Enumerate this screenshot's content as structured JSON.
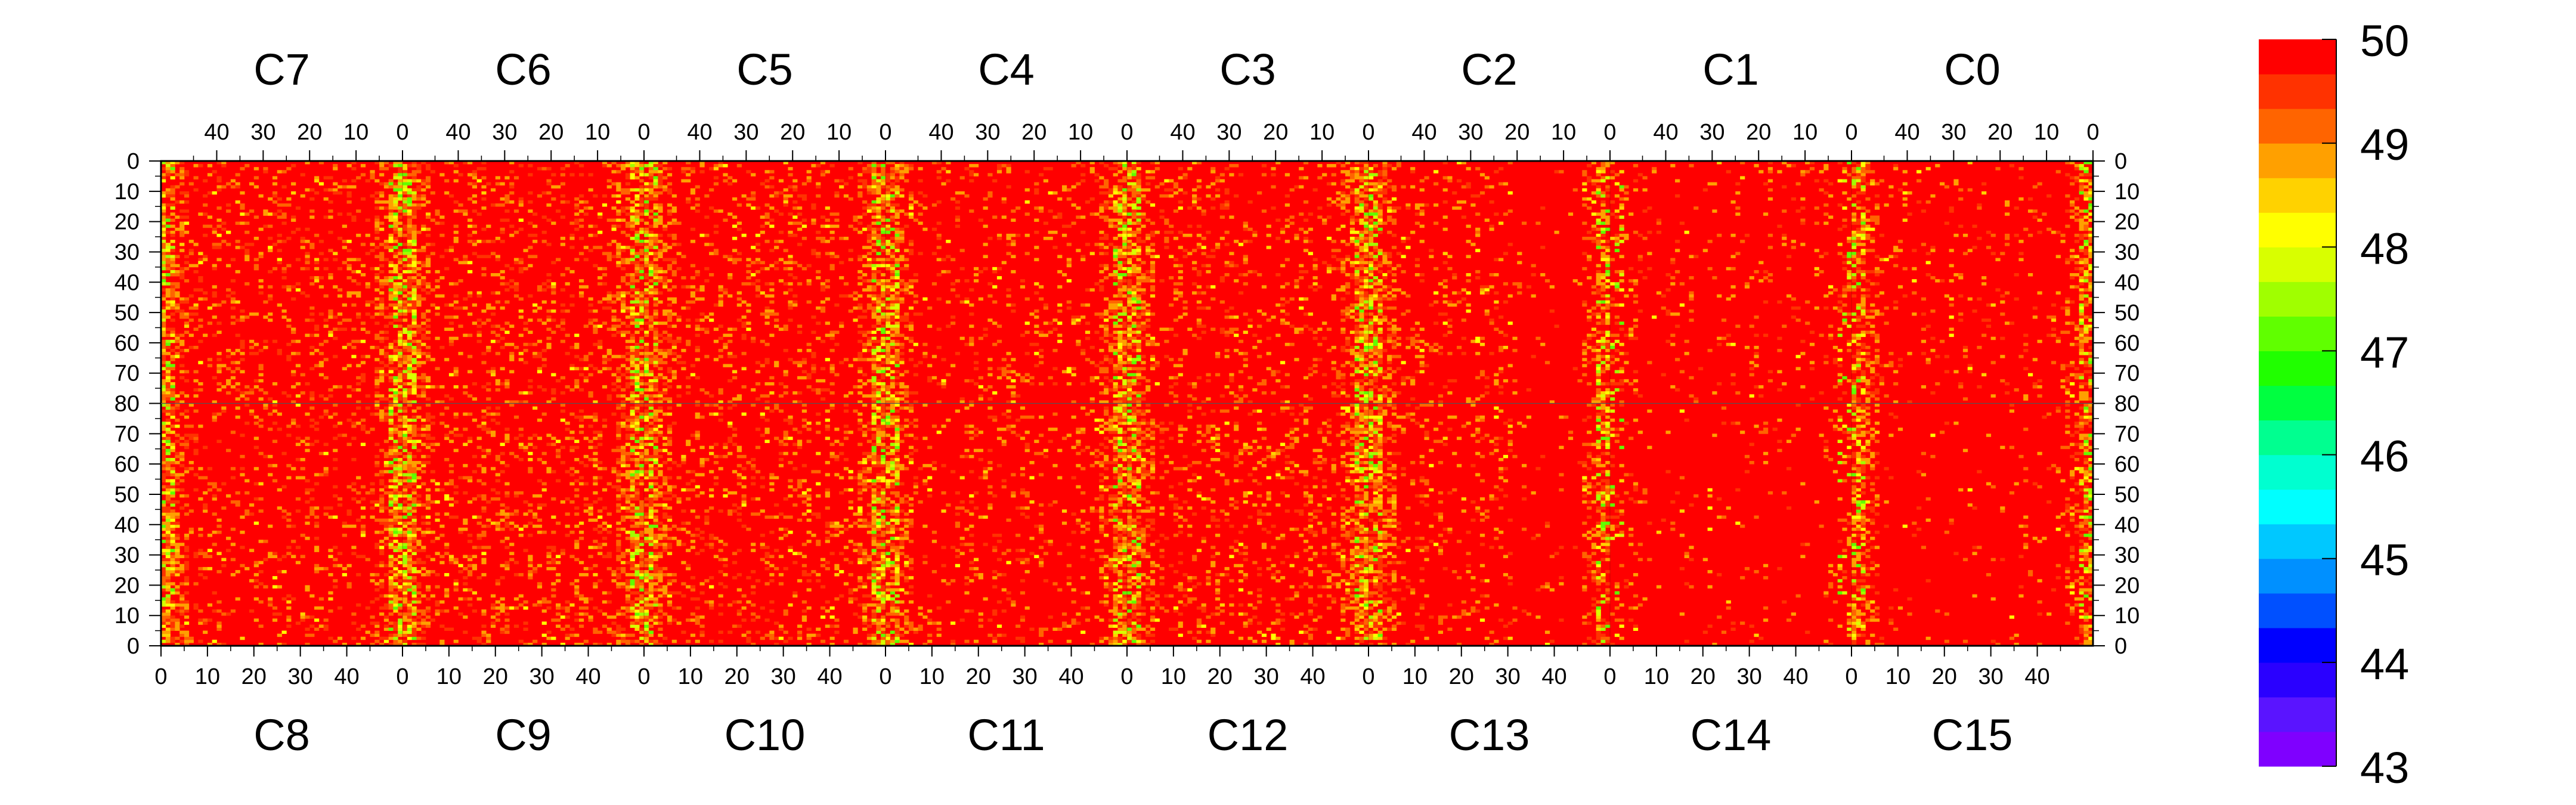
{
  "chart_data": {
    "type": "heatmap",
    "top_chip_labels": [
      "C7",
      "C6",
      "C5",
      "C4",
      "C3",
      "C2",
      "C1",
      "C0"
    ],
    "bottom_chip_labels": [
      "C8",
      "C9",
      "C10",
      "C11",
      "C12",
      "C13",
      "C14",
      "C15"
    ],
    "x_tick_labels_top": [
      "40",
      "30",
      "20",
      "10",
      "0"
    ],
    "x_tick_labels_bottom": [
      "0",
      "10",
      "20",
      "30",
      "40"
    ],
    "y_tick_labels_upper": [
      "0",
      "10",
      "20",
      "30",
      "40",
      "50",
      "60",
      "70",
      "80"
    ],
    "y_tick_labels_lower": [
      "80",
      "70",
      "60",
      "50",
      "40",
      "30",
      "20",
      "10",
      "0"
    ],
    "chip_columns": 52,
    "chip_rows": 80,
    "x_range": [
      0,
      52
    ],
    "y_range": [
      0,
      80
    ],
    "z_range": [
      43,
      50
    ],
    "colorbar": {
      "tick_labels": [
        "50",
        "49",
        "48",
        "47",
        "46",
        "45",
        "44",
        "43"
      ],
      "colors": [
        "#7f00ff",
        "#5a14ff",
        "#2a00ff",
        "#0000ff",
        "#0050ff",
        "#0090ff",
        "#00c8ff",
        "#00ffff",
        "#00ffd0",
        "#00ff90",
        "#00ff40",
        "#20ff00",
        "#60ff00",
        "#a0ff00",
        "#d8ff00",
        "#ffff00",
        "#ffd200",
        "#ffa000",
        "#ff6400",
        "#ff3200",
        "#ff0000"
      ]
    },
    "cell_colors": {
      "dominant": "#ff0000",
      "frequent": [
        "#ff3200",
        "#ff6400",
        "#ffa000"
      ],
      "occasional": [
        "#ffd200",
        "#ffff00",
        "#d8ff00",
        "#a0ff00",
        "#60ff00"
      ]
    },
    "edge_noisy_chips_top": [
      0,
      1,
      2,
      3,
      4,
      5
    ],
    "summary_note_values": {
      "typical_value": 50,
      "min_value": 43,
      "max_value": 50
    }
  }
}
